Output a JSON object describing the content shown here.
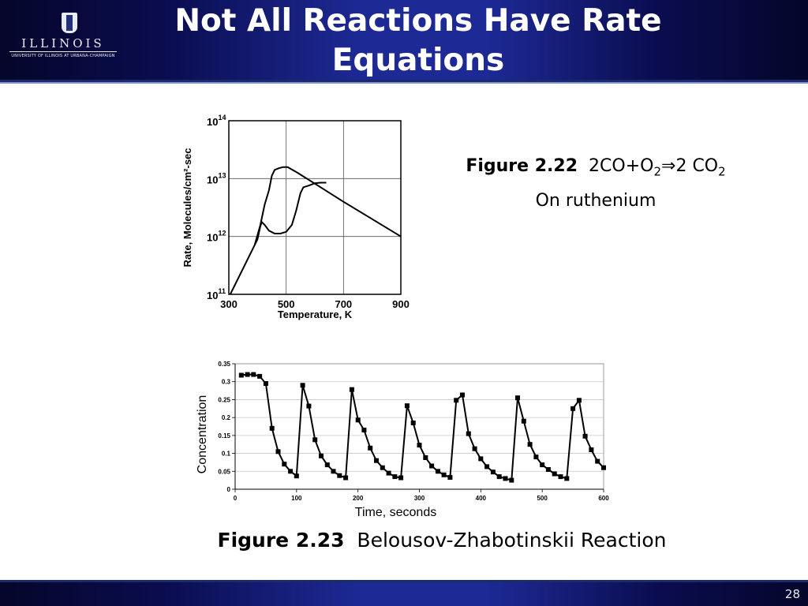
{
  "slide": {
    "title_line1": "Not All Reactions Have Rate",
    "title_line2": "Equations",
    "page_number": "28",
    "colors": {
      "header": "#1d2a96",
      "footer": "#1d2a96",
      "text": "#000000"
    }
  },
  "logo": {
    "wordmark": "ILLINOIS",
    "subtitle": "UNIVERSITY OF ILLINOIS AT URBANA-CHAMPAIGN",
    "icon": "block-i-logo-icon"
  },
  "captions": {
    "fig22_label": "Figure 2.22",
    "fig22_eq_a": "2CO+O",
    "fig22_eq_sub1": "2",
    "fig22_eq_arrow": "⇒",
    "fig22_eq_b": "2 CO",
    "fig22_eq_sub2": "2",
    "fig22_line2": "On ruthenium",
    "fig23_label": "Figure 2.23",
    "fig23_text": "Belousov-Zhabotinskii Reaction"
  },
  "chart_data": [
    {
      "type": "line",
      "xlabel": "Temperature, K",
      "ylabel": "Rate, Molecules/cm²-sec",
      "xlim": [
        300,
        900
      ],
      "ylim_log10": [
        11,
        14
      ],
      "x_ticks": [
        "300",
        "500",
        "700",
        "900"
      ],
      "y_ticks": [
        {
          "base": "10",
          "exp": "11"
        },
        {
          "base": "10",
          "exp": "12"
        },
        {
          "base": "10",
          "exp": "13"
        },
        {
          "base": "10",
          "exp": "14"
        }
      ],
      "log_scale_y": true,
      "grid": true,
      "series": [
        {
          "x": [
            305,
            330,
            360,
            390,
            410,
            425,
            440,
            450,
            460,
            475,
            490,
            505,
            540,
            620,
            700,
            800,
            900
          ],
          "log10_y": [
            11.0,
            11.25,
            11.55,
            11.85,
            12.2,
            12.55,
            12.8,
            13.05,
            13.15,
            13.18,
            13.2,
            13.2,
            13.1,
            12.85,
            12.6,
            12.3,
            12.0
          ]
        },
        {
          "x": [
            390,
            400,
            410,
            415,
            425,
            440,
            460,
            480,
            500,
            520,
            535,
            550,
            560,
            580,
            600,
            620,
            640
          ],
          "log10_y": [
            11.85,
            11.95,
            12.18,
            12.25,
            12.2,
            12.1,
            12.05,
            12.05,
            12.08,
            12.2,
            12.45,
            12.75,
            12.85,
            12.88,
            12.92,
            12.93,
            12.93
          ]
        }
      ]
    },
    {
      "type": "line",
      "xlabel": "Time, seconds",
      "ylabel": "Concentration",
      "xlim": [
        0,
        600
      ],
      "ylim": [
        0,
        0.35
      ],
      "x_ticks": [
        "0",
        "100",
        "200",
        "300",
        "400",
        "500",
        "600"
      ],
      "y_ticks": [
        "0",
        "0.05",
        "0.1",
        "0.15",
        "0.2",
        "0.25",
        "0.3",
        "0.35"
      ],
      "grid": true,
      "marker": "square",
      "series": [
        {
          "x": [
            10,
            20,
            30,
            40,
            50,
            60,
            70,
            80,
            90,
            100,
            110,
            120,
            130,
            140,
            150,
            160,
            170,
            180,
            190,
            200,
            210,
            220,
            230,
            240,
            250,
            260,
            270,
            280,
            290,
            300,
            310,
            320,
            330,
            340,
            350,
            360,
            370,
            380,
            390,
            400,
            410,
            420,
            430,
            440,
            450,
            460,
            470,
            480,
            490,
            500,
            510,
            520,
            530,
            540,
            550,
            560,
            570,
            580,
            590,
            600
          ],
          "y": [
            0.318,
            0.32,
            0.32,
            0.315,
            0.295,
            0.17,
            0.105,
            0.07,
            0.05,
            0.037,
            0.29,
            0.232,
            0.138,
            0.093,
            0.068,
            0.05,
            0.038,
            0.032,
            0.278,
            0.193,
            0.165,
            0.115,
            0.08,
            0.06,
            0.045,
            0.035,
            0.032,
            0.233,
            0.185,
            0.123,
            0.088,
            0.065,
            0.05,
            0.04,
            0.033,
            0.248,
            0.263,
            0.155,
            0.113,
            0.085,
            0.063,
            0.048,
            0.035,
            0.03,
            0.025,
            0.255,
            0.19,
            0.125,
            0.09,
            0.068,
            0.055,
            0.043,
            0.035,
            0.03,
            0.225,
            0.248,
            0.148,
            0.11,
            0.078,
            0.06
          ]
        }
      ]
    }
  ]
}
